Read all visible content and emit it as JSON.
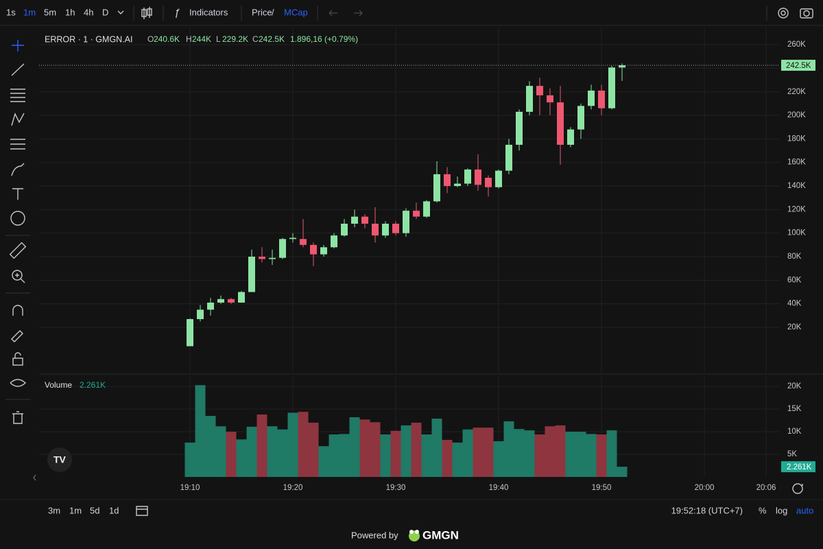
{
  "toolbar": {
    "intervals": [
      "1s",
      "1m",
      "5m",
      "1h",
      "4h",
      "D"
    ],
    "indicators": "Indicators",
    "price": "Price",
    "separator": "/",
    "mcap": "MCap"
  },
  "chart_data": [
    {
      "type": "candlestick",
      "title": "ERROR · 1 · GMGN.AI",
      "legend": [
        {
          "key": "O",
          "value": "240.6K"
        },
        {
          "key": "H",
          "value": "244K"
        },
        {
          "key": "L",
          "value": "229.2K"
        },
        {
          "key": "C",
          "value": "242.5K"
        }
      ],
      "change": "1.896,16 (+0.79%)",
      "x": [
        "19:10",
        "19:11",
        "19:12",
        "19:13",
        "19:14",
        "19:15",
        "19:16",
        "19:17",
        "19:18",
        "19:19",
        "19:20",
        "19:21",
        "19:22",
        "19:23",
        "19:24",
        "19:25",
        "19:26",
        "19:27",
        "19:28",
        "19:29",
        "19:30",
        "19:31",
        "19:32",
        "19:33",
        "19:34",
        "19:35",
        "19:36",
        "19:37",
        "19:38",
        "19:39",
        "19:40",
        "19:41",
        "19:42",
        "19:43",
        "19:44",
        "19:45",
        "19:46",
        "19:47",
        "19:48",
        "19:49",
        "19:50",
        "19:51",
        "19:52"
      ],
      "open": [
        4000,
        27000,
        35000,
        41000,
        44000,
        41000,
        50000,
        80000,
        78000,
        79000,
        95000,
        95000,
        90000,
        82000,
        88000,
        98000,
        108000,
        114000,
        108000,
        98000,
        108000,
        100000,
        119000,
        114000,
        127000,
        150000,
        140000,
        142000,
        154000,
        147000,
        139000,
        153000,
        175000,
        203000,
        225000,
        217000,
        211000,
        175000,
        188000,
        208000,
        221000,
        206000,
        240600
      ],
      "high": [
        27500,
        39000,
        45000,
        47000,
        45000,
        51000,
        86000,
        88000,
        86000,
        96000,
        100000,
        112000,
        92000,
        90000,
        100000,
        112000,
        120000,
        116000,
        122000,
        110000,
        110000,
        121000,
        126000,
        128000,
        161000,
        156000,
        148000,
        155000,
        167000,
        149000,
        154000,
        180000,
        205000,
        229000,
        232000,
        223000,
        225000,
        190000,
        210000,
        226000,
        226000,
        242000,
        244000
      ],
      "low": [
        4000,
        25000,
        30000,
        40000,
        40000,
        41000,
        50000,
        75000,
        73000,
        78000,
        92000,
        88000,
        72000,
        80000,
        87000,
        97000,
        105000,
        104000,
        92000,
        96000,
        98000,
        97000,
        112000,
        113000,
        126000,
        134000,
        139000,
        140000,
        136000,
        131000,
        138000,
        150000,
        170000,
        200000,
        200000,
        200000,
        158000,
        173000,
        180000,
        205000,
        200000,
        205000,
        229200
      ],
      "close": [
        27000,
        35000,
        41000,
        44000,
        41000,
        50000,
        80000,
        78000,
        79000,
        95000,
        96000,
        90000,
        82000,
        88000,
        98000,
        108000,
        114000,
        108000,
        98000,
        108000,
        100000,
        119000,
        114000,
        127000,
        150000,
        140000,
        142000,
        154000,
        141000,
        139000,
        153000,
        175000,
        203000,
        225000,
        217000,
        211000,
        175000,
        188000,
        208000,
        221000,
        206000,
        240600,
        242500
      ],
      "up_color": "#8ee4a4",
      "down_color": "#ef5770",
      "ylim": [
        -19600,
        274600
      ],
      "yticks": [
        {
          "value": 20000,
          "label": "20K"
        },
        {
          "value": 40000,
          "label": "40K"
        },
        {
          "value": 60000,
          "label": "60K"
        },
        {
          "value": 80000,
          "label": "80K"
        },
        {
          "value": 100000,
          "label": "100K"
        },
        {
          "value": 120000,
          "label": "120K"
        },
        {
          "value": 140000,
          "label": "140K"
        },
        {
          "value": 160000,
          "label": "160K"
        },
        {
          "value": 180000,
          "label": "180K"
        },
        {
          "value": 200000,
          "label": "200K"
        },
        {
          "value": 220000,
          "label": "220K"
        },
        {
          "value": 240000,
          "label": "240K"
        },
        {
          "value": 260000,
          "label": "260K"
        }
      ],
      "xticks": [
        "19:10",
        "19:20",
        "19:30",
        "19:40",
        "19:50",
        "20:00",
        "20:06"
      ],
      "last_price": {
        "value": 242500,
        "label": "242.5K"
      },
      "grid": true
    },
    {
      "type": "bar",
      "title": "Volume",
      "x": [
        "19:10",
        "19:11",
        "19:12",
        "19:13",
        "19:14",
        "19:15",
        "19:16",
        "19:17",
        "19:18",
        "19:19",
        "19:20",
        "19:21",
        "19:22",
        "19:23",
        "19:24",
        "19:25",
        "19:26",
        "19:27",
        "19:28",
        "19:29",
        "19:30",
        "19:31",
        "19:32",
        "19:33",
        "19:34",
        "19:35",
        "19:36",
        "19:37",
        "19:38",
        "19:39",
        "19:40",
        "19:41",
        "19:42",
        "19:43",
        "19:44",
        "19:45",
        "19:46",
        "19:47",
        "19:48",
        "19:49",
        "19:50",
        "19:51",
        "19:52"
      ],
      "values": [
        7600,
        20300,
        13500,
        11200,
        10000,
        8300,
        11100,
        13800,
        11200,
        10500,
        14200,
        14400,
        12000,
        6800,
        9400,
        9500,
        13200,
        12700,
        12100,
        9400,
        10200,
        11400,
        12000,
        9400,
        12900,
        8200,
        7600,
        10500,
        10900,
        10900,
        7900,
        12300,
        10600,
        10300,
        9400,
        11200,
        11400,
        10000,
        10000,
        9500,
        9400,
        10300,
        2261
      ],
      "up_color": "#1f7a66",
      "down_color": "#8e3540",
      "ylim": [
        0,
        22000
      ],
      "yticks": [
        {
          "value": 5000,
          "label": "5K"
        },
        {
          "value": 10000,
          "label": "10K"
        },
        {
          "value": 15000,
          "label": "15K"
        },
        {
          "value": 20000,
          "label": "20K"
        }
      ],
      "last_value": {
        "value": 2261,
        "label": "2.261K"
      },
      "grid": true
    }
  ],
  "footer": {
    "ranges": [
      "3m",
      "1m",
      "5d",
      "1d"
    ],
    "clock": "19:52:18 (UTC+7)",
    "percent": "%",
    "log": "log",
    "auto": "auto",
    "powered": "Powered by",
    "brand": "GMGN"
  }
}
